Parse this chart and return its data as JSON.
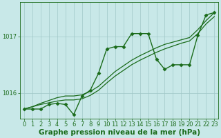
{
  "xlabel": "Graphe pression niveau de la mer (hPa)",
  "background_color": "#c8e8e8",
  "grid_color": "#a0c8c8",
  "line_color": "#1a6b1a",
  "xlim": [
    -0.5,
    23.5
  ],
  "ylim": [
    1015.55,
    1017.6
  ],
  "yticks": [
    1016,
    1017
  ],
  "xticks": [
    0,
    1,
    2,
    3,
    4,
    5,
    6,
    7,
    8,
    9,
    10,
    11,
    12,
    13,
    14,
    15,
    16,
    17,
    18,
    19,
    20,
    21,
    22,
    23
  ],
  "series": [
    {
      "x": [
        0,
        1,
        2,
        3,
        4,
        5,
        6,
        7,
        8,
        9,
        10,
        11,
        12,
        13,
        14,
        15,
        16,
        17,
        18,
        19,
        20,
        21,
        22,
        23
      ],
      "y": [
        1015.72,
        1015.72,
        1015.72,
        1015.8,
        1015.82,
        1015.8,
        1015.62,
        1015.95,
        1016.05,
        1016.35,
        1016.78,
        1016.82,
        1016.82,
        1017.05,
        1017.05,
        1017.05,
        1016.6,
        1016.42,
        1016.5,
        1016.5,
        1016.5,
        1017.02,
        1017.38,
        1017.42
      ],
      "marker": "D",
      "markersize": 2.5,
      "linewidth": 1.0
    },
    {
      "x": [
        0,
        1,
        2,
        3,
        4,
        5,
        6,
        7,
        8,
        9,
        10,
        11,
        12,
        13,
        14,
        15,
        16,
        17,
        18,
        19,
        20,
        21,
        22,
        23
      ],
      "y": [
        1015.72,
        1015.76,
        1015.8,
        1015.83,
        1015.86,
        1015.88,
        1015.88,
        1015.9,
        1015.96,
        1016.05,
        1016.18,
        1016.3,
        1016.4,
        1016.5,
        1016.58,
        1016.65,
        1016.72,
        1016.78,
        1016.83,
        1016.88,
        1016.92,
        1017.05,
        1017.22,
        1017.35
      ],
      "marker": null,
      "markersize": 0,
      "linewidth": 0.9
    },
    {
      "x": [
        0,
        1,
        2,
        3,
        4,
        5,
        6,
        7,
        8,
        9,
        10,
        11,
        12,
        13,
        14,
        15,
        16,
        17,
        18,
        19,
        20,
        21,
        22,
        23
      ],
      "y": [
        1015.72,
        1015.76,
        1015.82,
        1015.87,
        1015.92,
        1015.95,
        1015.95,
        1015.97,
        1016.03,
        1016.12,
        1016.25,
        1016.38,
        1016.48,
        1016.58,
        1016.66,
        1016.73,
        1016.8,
        1016.86,
        1016.9,
        1016.94,
        1016.98,
        1017.12,
        1017.28,
        1017.42
      ],
      "marker": null,
      "markersize": 0,
      "linewidth": 0.9
    }
  ],
  "tick_fontsize": 6.0,
  "xlabel_fontsize": 7.5,
  "tick_color": "#1a6b1a",
  "xlabel_color": "#1a6b1a",
  "xlabel_fontweight": "bold",
  "figsize": [
    3.2,
    2.0
  ],
  "dpi": 100
}
